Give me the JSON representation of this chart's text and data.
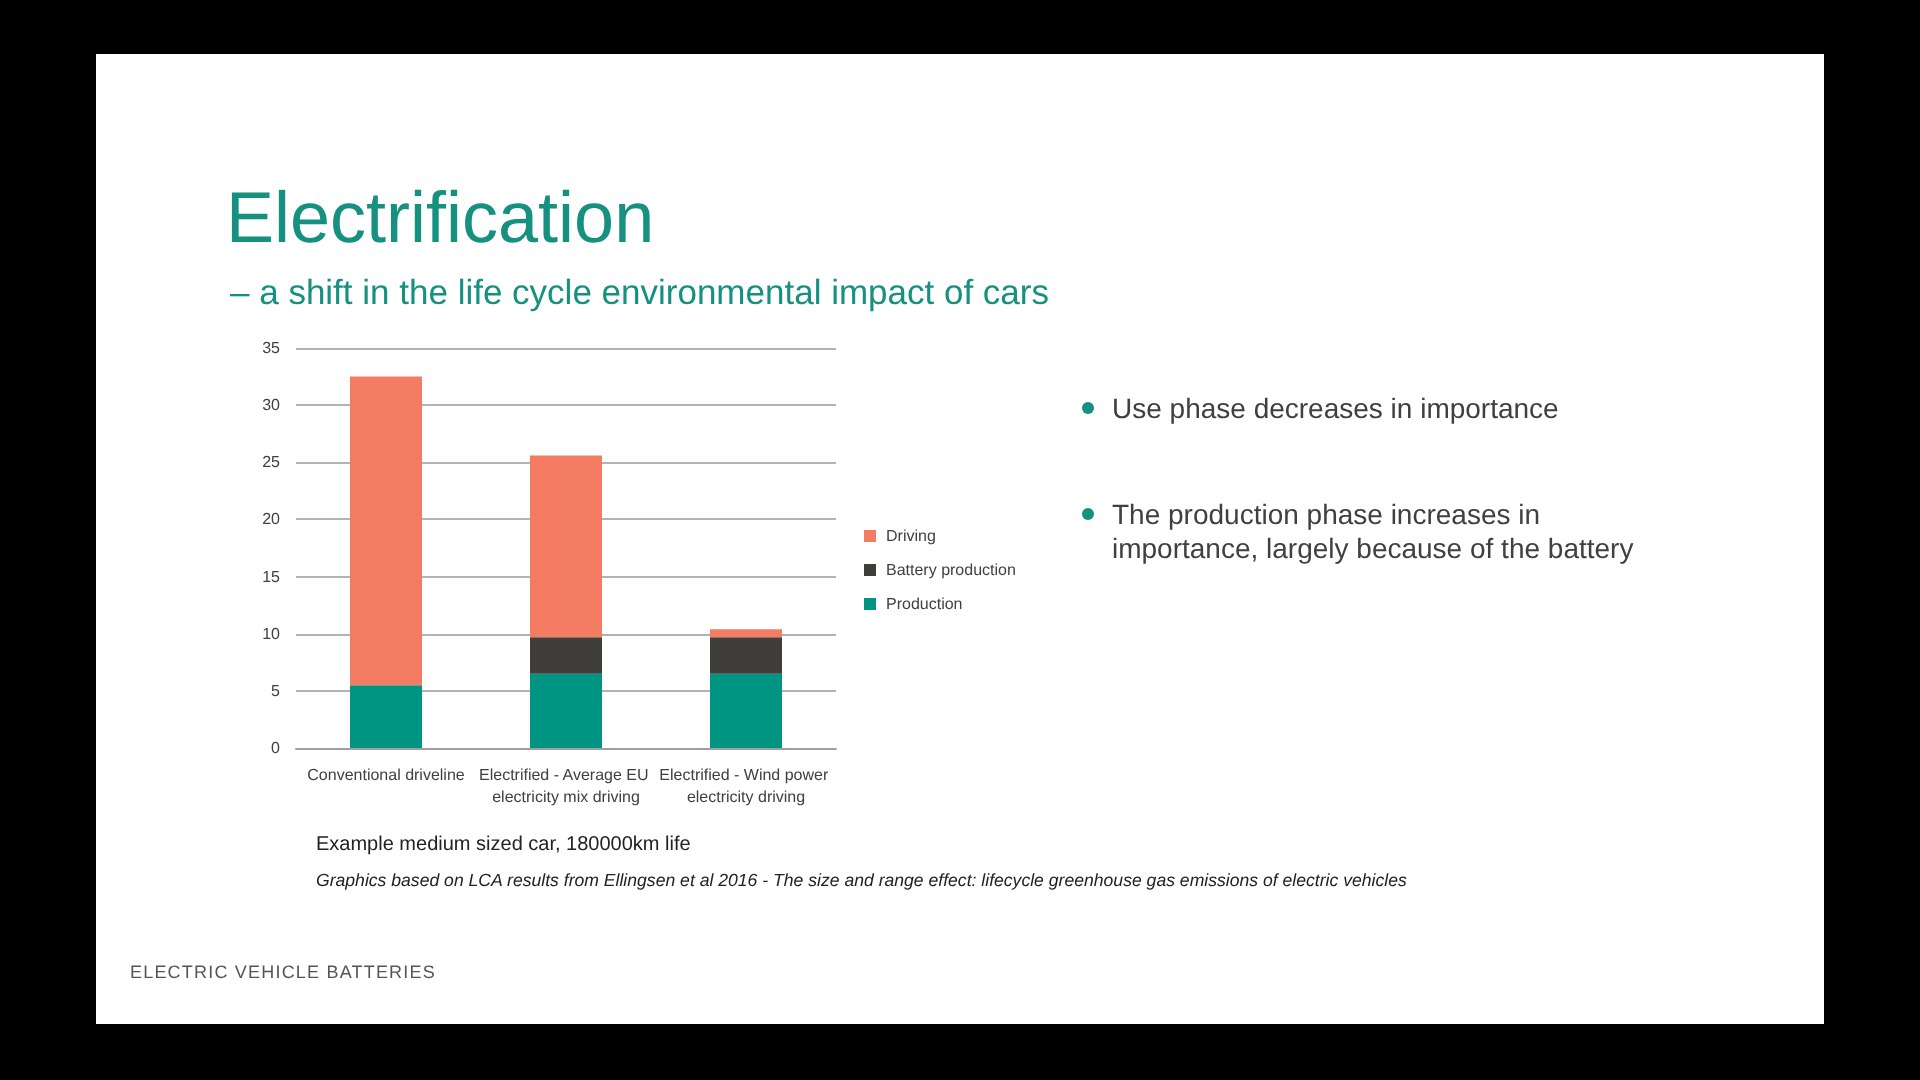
{
  "chart_data": {
    "type": "bar",
    "title": "Electrification",
    "subtitle": "– a shift in the life cycle environmental impact of cars",
    "categories": [
      "Conventional driveline",
      "Electrified - Average EU electricity mix driving",
      "Electrified - Wind power electricity driving"
    ],
    "series": [
      {
        "name": "Production",
        "color": "#009483",
        "values": [
          5.5,
          6.5,
          6.5
        ]
      },
      {
        "name": "Battery production",
        "color": "#3f3e3a",
        "values": [
          null,
          3.2,
          3.2
        ]
      },
      {
        "name": "Driving",
        "color": "#f47c63",
        "values": [
          27.0,
          15.9,
          0.7
        ]
      }
    ],
    "stacked": true,
    "ylim": [
      0,
      35
    ],
    "yticks": [
      0,
      5,
      10,
      15,
      20,
      25,
      30,
      35
    ],
    "grid": "y",
    "legend": "right",
    "annotations": [
      "Use phase decreases in importance",
      "The production phase increases in importance, largely because of the battery",
      "Example medium sized car, 180000km life",
      "Graphics based on LCA results from Ellingsen et al 2016 - The size and range effect: lifecycle greenhouse gas emissions of electric vehicles",
      "ELECTRIC VEHICLE BATTERIES"
    ]
  }
}
